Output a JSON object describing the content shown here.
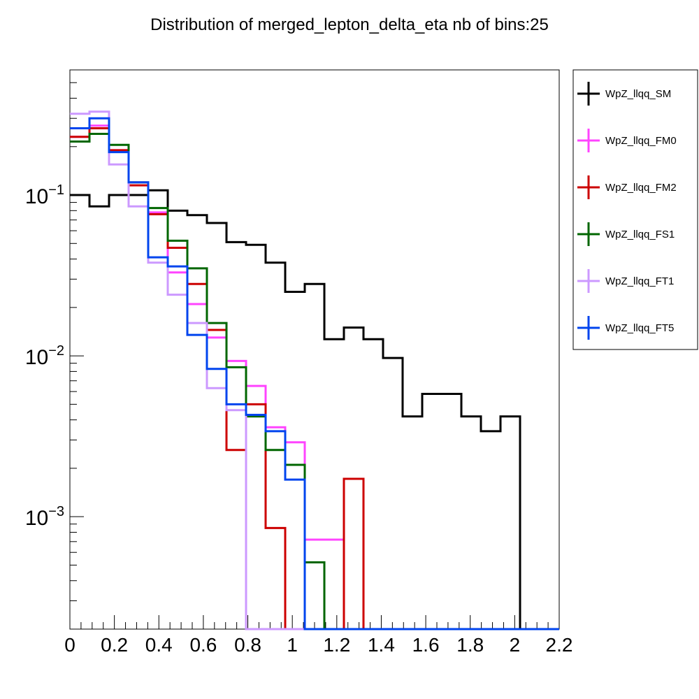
{
  "chart_data": {
    "type": "line",
    "title": "Distribution of merged_lepton_delta_eta nb of bins:25",
    "xlabel": "",
    "ylabel": "",
    "xlim": [
      0,
      2.2
    ],
    "ylim": [
      0.0002,
      0.6
    ],
    "y_scale": "log",
    "grid": false,
    "legend_position": "right",
    "x_ticks": [
      0,
      0.2,
      0.4,
      0.6,
      0.8,
      1,
      1.2,
      1.4,
      1.6,
      1.8,
      2,
      2.2
    ],
    "x_tick_labels": [
      "0",
      "0.2",
      "0.4",
      "0.6",
      "0.8",
      "1",
      "1.2",
      "1.4",
      "1.6",
      "1.8",
      "2",
      "2.2"
    ],
    "y_major_ticks": [
      {
        "value": 0.1,
        "base": "10",
        "exp": "−1"
      },
      {
        "value": 0.01,
        "base": "10",
        "exp": "−2"
      },
      {
        "value": 0.001,
        "base": "10",
        "exp": "−3"
      }
    ],
    "bin_edges": [
      0,
      0.088,
      0.176,
      0.264,
      0.352,
      0.44,
      0.528,
      0.616,
      0.704,
      0.792,
      0.88,
      0.968,
      1.056,
      1.144,
      1.232,
      1.32,
      1.408,
      1.496,
      1.584,
      1.672,
      1.76,
      1.848,
      1.936,
      2.024,
      2.112,
      2.2
    ],
    "series": [
      {
        "name": "WpZ_llqq_SM",
        "color": "#000000",
        "values": [
          0.1,
          0.085,
          0.1,
          0.1,
          0.107,
          0.08,
          0.075,
          0.067,
          0.051,
          0.049,
          0.038,
          0.025,
          0.028,
          0.0127,
          0.015,
          0.0127,
          0.0097,
          0.0042,
          0.0058,
          0.0058,
          0.0042,
          0.0034,
          0.0042,
          0,
          0
        ]
      },
      {
        "name": "WpZ_llqq_FM0",
        "color": "#ff44ff",
        "values": [
          0.23,
          0.27,
          0.19,
          0.12,
          0.078,
          0.033,
          0.021,
          0.013,
          0.0093,
          0.0065,
          0.0036,
          0.0029,
          0.00072,
          0.00072,
          0,
          0,
          0,
          0,
          0,
          0,
          0,
          0,
          0,
          0,
          0
        ]
      },
      {
        "name": "WpZ_llqq_FM2",
        "color": "#cc0000",
        "values": [
          0.23,
          0.26,
          0.19,
          0.115,
          0.076,
          0.047,
          0.028,
          0.0145,
          0.0026,
          0.005,
          0.00085,
          0,
          0,
          0,
          0.00172,
          0,
          0,
          0,
          0,
          0,
          0,
          0,
          0,
          0,
          0
        ]
      },
      {
        "name": "WpZ_llqq_FS1",
        "color": "#006600",
        "values": [
          0.215,
          0.24,
          0.205,
          0.12,
          0.083,
          0.052,
          0.035,
          0.016,
          0.0085,
          0.0042,
          0.0026,
          0.0021,
          0.00052,
          0,
          0,
          0,
          0,
          0,
          0,
          0,
          0,
          0,
          0,
          0,
          0
        ]
      },
      {
        "name": "WpZ_llqq_FT1",
        "color": "#cc99ff",
        "values": [
          0.32,
          0.33,
          0.155,
          0.085,
          0.038,
          0.024,
          0.016,
          0.0063,
          0.0046,
          0,
          0,
          0,
          0,
          0,
          0,
          0,
          0,
          0,
          0,
          0,
          0,
          0,
          0,
          0,
          0
        ]
      },
      {
        "name": "WpZ_llqq_FT5",
        "color": "#0044ee",
        "values": [
          0.26,
          0.3,
          0.185,
          0.12,
          0.041,
          0.036,
          0.0135,
          0.0083,
          0.005,
          0.0043,
          0.0034,
          0.0017,
          0,
          0,
          0,
          0,
          0,
          0,
          0,
          0,
          0,
          0,
          0,
          0,
          0
        ]
      }
    ]
  }
}
